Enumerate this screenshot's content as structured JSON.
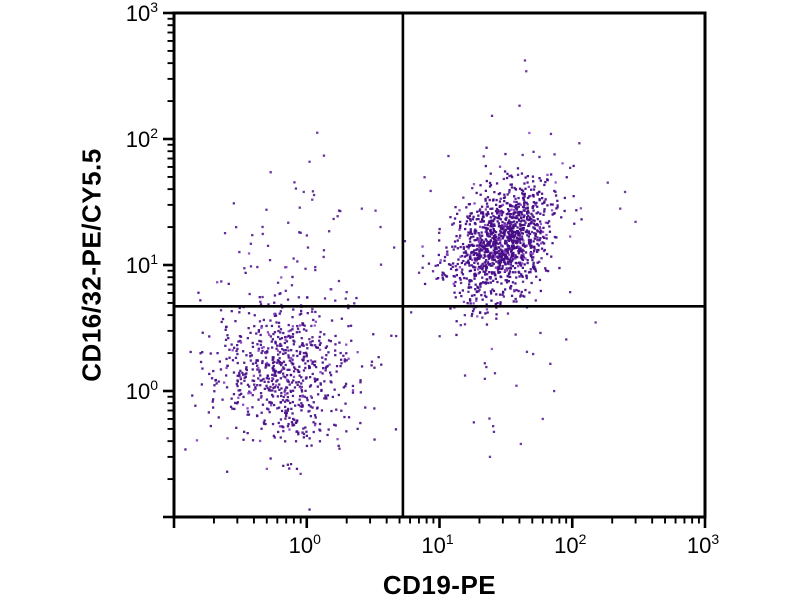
{
  "chart_data": {
    "type": "scatter",
    "title": "",
    "xlabel": "CD19-PE",
    "ylabel": "CD16/32-PE/CY5.5",
    "x_scale": "log",
    "y_scale": "log",
    "xlim": [
      0.1,
      1000
    ],
    "ylim": [
      0.1,
      1000
    ],
    "x_tick_exponents": [
      0,
      1,
      2,
      3
    ],
    "y_tick_exponents": [
      0,
      1,
      2,
      3
    ],
    "tick_label_base": "10",
    "grid": false,
    "legend": "none",
    "frame": "box",
    "axis_color": "#000000",
    "gate_color": "#000000",
    "point_color": "#470d87",
    "point_color_alt": "#8a3fc0",
    "quadrant_gates": {
      "x": 5.3,
      "y": 4.7
    },
    "populations": [
      {
        "name": "double-negative CD19- CD16/32-",
        "n": 720,
        "center": [
          0.69,
          1.35
        ],
        "log_center": [
          -0.16,
          0.13
        ],
        "log_sd": [
          0.26,
          0.27
        ],
        "rho": 0.0,
        "opacity": 0.92
      },
      {
        "name": "double-positive CD19+ CD16/32+",
        "n": 1250,
        "center": [
          29.5,
          14.8
        ],
        "log_center": [
          1.47,
          1.17
        ],
        "log_sd": [
          0.185,
          0.22
        ],
        "rho": 0.3,
        "opacity": 0.95
      },
      {
        "name": "double-positive halo",
        "n": 110,
        "center": [
          28.2,
          19.1
        ],
        "log_center": [
          1.45,
          1.28
        ],
        "log_sd": [
          0.3,
          0.42
        ],
        "rho": 0.2,
        "opacity": 0.85
      },
      {
        "name": "upper-left scatter",
        "n": 85,
        "center": [
          0.83,
          7.6
        ],
        "log_center": [
          -0.08,
          0.88
        ],
        "log_sd": [
          0.27,
          0.38
        ],
        "rho": 0.0,
        "opacity": 0.85
      },
      {
        "name": "lower-right sparse scatter",
        "n": 18,
        "center": [
          35.5,
          1.26
        ],
        "log_center": [
          1.55,
          0.1
        ],
        "log_sd": [
          0.35,
          0.5
        ],
        "rho": 0.0,
        "opacity": 0.85
      }
    ],
    "outliers": [
      [
        44,
        420
      ],
      [
        45,
        345
      ],
      [
        1.2,
        112
      ],
      [
        1.05,
        66
      ],
      [
        0.95,
        38
      ],
      [
        1.1,
        33
      ],
      [
        2.6,
        28
      ],
      [
        3.3,
        27
      ],
      [
        3.6,
        20
      ],
      [
        185,
        45
      ],
      [
        250,
        38
      ],
      [
        230,
        28
      ],
      [
        300,
        22
      ],
      [
        150,
        3.5
      ],
      [
        38,
        1.1
      ],
      [
        73,
        1.0
      ],
      [
        41,
        0.38
      ],
      [
        60,
        0.6
      ],
      [
        24,
        0.3
      ],
      [
        0.9,
        0.22
      ]
    ]
  }
}
